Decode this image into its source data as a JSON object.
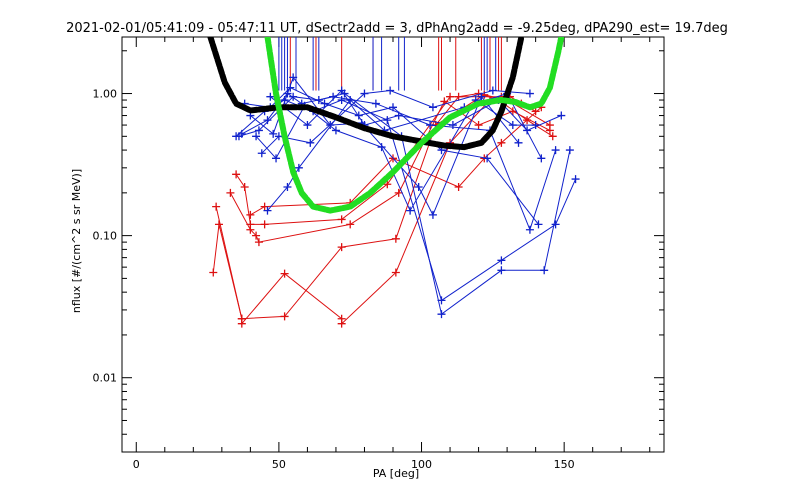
{
  "chart_data": {
    "type": "scatter",
    "title": "2021-02-01/05:41:09 - 05:47:11 UT, dSectr2add = 3, dPhAng2add = -9.25deg, dPA290_est=  19.7deg",
    "xlabel": "PA [deg]",
    "ylabel": "nflux [#/(cm^2 s sr MeV)]",
    "xlim": [
      -5,
      185
    ],
    "ylim": [
      0.003,
      2.5
    ],
    "yscale": "log",
    "grid": false,
    "x_ticks": [
      {
        "value": 0,
        "label": "0"
      },
      {
        "value": 50,
        "label": "50"
      },
      {
        "value": 100,
        "label": "100"
      },
      {
        "value": 150,
        "label": "150"
      }
    ],
    "y_ticks": [
      {
        "value": 0.01,
        "label": "0.01"
      },
      {
        "value": 0.1,
        "label": "0.10"
      },
      {
        "value": 1.0,
        "label": "1.00"
      }
    ],
    "x_minor_step": 10,
    "colors": {
      "red": "#dd1111",
      "blue": "#1122cc",
      "black": "#000000",
      "green": "#22dd22"
    },
    "vertical_markers": {
      "y_top": 2.5,
      "y_bottom": 1.05,
      "red": [
        54,
        63,
        72,
        83,
        106,
        107,
        112,
        121,
        124,
        127,
        128
      ],
      "blue": [
        50,
        51,
        52,
        53,
        56,
        62,
        64,
        83,
        86,
        92,
        94,
        122,
        123,
        126
      ]
    },
    "series": [
      {
        "color": "red",
        "points": [
          {
            "x": 27,
            "y": 0.055
          },
          {
            "x": 29,
            "y": 0.12
          },
          {
            "x": 37,
            "y": 0.026
          },
          {
            "x": 37,
            "y": 0.024
          },
          {
            "x": 52,
            "y": 0.054
          },
          {
            "x": 72,
            "y": 0.026
          },
          {
            "x": 72,
            "y": 0.024
          },
          {
            "x": 91,
            "y": 0.055
          },
          {
            "x": 110,
            "y": 0.45
          },
          {
            "x": 124,
            "y": 0.9
          },
          {
            "x": 131,
            "y": 0.95
          },
          {
            "x": 140,
            "y": 0.75
          }
        ]
      },
      {
        "color": "red",
        "points": [
          {
            "x": 28,
            "y": 0.16
          },
          {
            "x": 37,
            "y": 0.026
          },
          {
            "x": 52,
            "y": 0.027
          },
          {
            "x": 72,
            "y": 0.083
          },
          {
            "x": 91,
            "y": 0.095
          },
          {
            "x": 105,
            "y": 0.6
          },
          {
            "x": 122,
            "y": 0.98
          },
          {
            "x": 135,
            "y": 0.85
          }
        ]
      },
      {
        "color": "red",
        "points": [
          {
            "x": 33,
            "y": 0.2
          },
          {
            "x": 40,
            "y": 0.11
          },
          {
            "x": 42,
            "y": 0.1
          },
          {
            "x": 43,
            "y": 0.09
          },
          {
            "x": 75,
            "y": 0.12
          },
          {
            "x": 92,
            "y": 0.2
          },
          {
            "x": 108,
            "y": 0.88
          },
          {
            "x": 120,
            "y": 0.6
          },
          {
            "x": 132,
            "y": 0.75
          },
          {
            "x": 145,
            "y": 0.55
          }
        ]
      },
      {
        "color": "red",
        "points": [
          {
            "x": 35,
            "y": 0.27
          },
          {
            "x": 38,
            "y": 0.22
          },
          {
            "x": 40,
            "y": 0.12
          },
          {
            "x": 45,
            "y": 0.12
          },
          {
            "x": 72,
            "y": 0.13
          },
          {
            "x": 88,
            "y": 0.23
          },
          {
            "x": 110,
            "y": 0.95
          },
          {
            "x": 128,
            "y": 0.95
          },
          {
            "x": 145,
            "y": 0.6
          }
        ]
      },
      {
        "color": "red",
        "points": [
          {
            "x": 40,
            "y": 0.14
          },
          {
            "x": 45,
            "y": 0.16
          },
          {
            "x": 75,
            "y": 0.17
          },
          {
            "x": 90,
            "y": 0.35
          },
          {
            "x": 113,
            "y": 0.22
          },
          {
            "x": 122,
            "y": 0.35
          },
          {
            "x": 128,
            "y": 0.45
          },
          {
            "x": 142,
            "y": 0.8
          }
        ]
      },
      {
        "color": "red",
        "points": [
          {
            "x": 105,
            "y": 0.6
          },
          {
            "x": 113,
            "y": 0.95
          },
          {
            "x": 120,
            "y": 1.0
          },
          {
            "x": 127,
            "y": 0.9
          },
          {
            "x": 137,
            "y": 0.65
          },
          {
            "x": 146,
            "y": 0.5
          }
        ]
      },
      {
        "color": "blue",
        "points": [
          {
            "x": 35,
            "y": 0.5
          },
          {
            "x": 45,
            "y": 0.75
          },
          {
            "x": 52,
            "y": 0.9
          },
          {
            "x": 62,
            "y": 0.75
          },
          {
            "x": 72,
            "y": 0.9
          },
          {
            "x": 88,
            "y": 0.65
          },
          {
            "x": 107,
            "y": 0.035
          },
          {
            "x": 128,
            "y": 0.067
          },
          {
            "x": 147,
            "y": 0.12
          },
          {
            "x": 154,
            "y": 0.25
          }
        ]
      },
      {
        "color": "blue",
        "points": [
          {
            "x": 36,
            "y": 0.5
          },
          {
            "x": 43,
            "y": 0.55
          },
          {
            "x": 55,
            "y": 0.95
          },
          {
            "x": 64,
            "y": 0.9
          },
          {
            "x": 73,
            "y": 1.0
          },
          {
            "x": 93,
            "y": 0.5
          },
          {
            "x": 107,
            "y": 0.028
          },
          {
            "x": 128,
            "y": 0.057
          },
          {
            "x": 143,
            "y": 0.057
          },
          {
            "x": 152,
            "y": 0.4
          }
        ]
      },
      {
        "color": "blue",
        "points": [
          {
            "x": 37,
            "y": 0.52
          },
          {
            "x": 46,
            "y": 0.65
          },
          {
            "x": 53,
            "y": 1.0
          },
          {
            "x": 58,
            "y": 0.85
          },
          {
            "x": 69,
            "y": 0.95
          },
          {
            "x": 84,
            "y": 0.85
          },
          {
            "x": 103,
            "y": 0.6
          },
          {
            "x": 124,
            "y": 0.55
          },
          {
            "x": 138,
            "y": 0.11
          },
          {
            "x": 147,
            "y": 0.4
          }
        ]
      },
      {
        "color": "blue",
        "points": [
          {
            "x": 38,
            "y": 0.85
          },
          {
            "x": 47,
            "y": 0.8
          },
          {
            "x": 54,
            "y": 1.1
          },
          {
            "x": 66,
            "y": 0.85
          },
          {
            "x": 78,
            "y": 0.7
          },
          {
            "x": 90,
            "y": 0.8
          },
          {
            "x": 107,
            "y": 0.4
          },
          {
            "x": 123,
            "y": 0.35
          },
          {
            "x": 141,
            "y": 0.12
          }
        ]
      },
      {
        "color": "blue",
        "points": [
          {
            "x": 40,
            "y": 0.7
          },
          {
            "x": 48,
            "y": 0.52
          },
          {
            "x": 55,
            "y": 1.3
          },
          {
            "x": 68,
            "y": 0.6
          },
          {
            "x": 79,
            "y": 0.62
          },
          {
            "x": 99,
            "y": 0.22
          },
          {
            "x": 104,
            "y": 0.14
          },
          {
            "x": 121,
            "y": 0.95
          },
          {
            "x": 134,
            "y": 0.45
          }
        ]
      },
      {
        "color": "blue",
        "points": [
          {
            "x": 42,
            "y": 0.5
          },
          {
            "x": 49,
            "y": 0.35
          },
          {
            "x": 59,
            "y": 0.82
          },
          {
            "x": 70,
            "y": 0.55
          },
          {
            "x": 86,
            "y": 0.42
          },
          {
            "x": 96,
            "y": 0.15
          },
          {
            "x": 119,
            "y": 0.9
          },
          {
            "x": 132,
            "y": 0.6
          },
          {
            "x": 140,
            "y": 0.6
          }
        ]
      },
      {
        "color": "blue",
        "points": [
          {
            "x": 44,
            "y": 0.38
          },
          {
            "x": 50,
            "y": 0.5
          },
          {
            "x": 61,
            "y": 0.45
          },
          {
            "x": 80,
            "y": 1.0
          },
          {
            "x": 89,
            "y": 1.05
          },
          {
            "x": 104,
            "y": 0.8
          },
          {
            "x": 125,
            "y": 1.05
          },
          {
            "x": 138,
            "y": 1.0
          }
        ]
      },
      {
        "color": "blue",
        "points": [
          {
            "x": 46,
            "y": 0.15
          },
          {
            "x": 53,
            "y": 0.22
          },
          {
            "x": 57,
            "y": 0.3
          },
          {
            "x": 75,
            "y": 0.9
          },
          {
            "x": 87,
            "y": 0.55
          },
          {
            "x": 115,
            "y": 0.8
          },
          {
            "x": 130,
            "y": 1.0
          },
          {
            "x": 142,
            "y": 0.35
          }
        ]
      },
      {
        "color": "blue",
        "points": [
          {
            "x": 47,
            "y": 0.95
          },
          {
            "x": 60,
            "y": 0.6
          },
          {
            "x": 72,
            "y": 1.05
          },
          {
            "x": 80,
            "y": 0.6
          },
          {
            "x": 92,
            "y": 0.7
          },
          {
            "x": 111,
            "y": 0.6
          },
          {
            "x": 127,
            "y": 0.9
          },
          {
            "x": 137,
            "y": 0.55
          },
          {
            "x": 149,
            "y": 0.7
          }
        ]
      }
    ],
    "curves": [
      {
        "color": "black",
        "style": "thick-dashed",
        "points": [
          {
            "x": 26,
            "y": 2.5
          },
          {
            "x": 31,
            "y": 1.2
          },
          {
            "x": 35,
            "y": 0.85
          },
          {
            "x": 40,
            "y": 0.76
          },
          {
            "x": 50,
            "y": 0.8
          },
          {
            "x": 60,
            "y": 0.8
          },
          {
            "x": 70,
            "y": 0.68
          },
          {
            "x": 80,
            "y": 0.57
          },
          {
            "x": 90,
            "y": 0.5
          },
          {
            "x": 100,
            "y": 0.46
          },
          {
            "x": 108,
            "y": 0.43
          },
          {
            "x": 115,
            "y": 0.42
          },
          {
            "x": 121,
            "y": 0.45
          },
          {
            "x": 125,
            "y": 0.55
          },
          {
            "x": 128,
            "y": 0.75
          },
          {
            "x": 132,
            "y": 1.3
          },
          {
            "x": 135,
            "y": 2.5
          }
        ]
      },
      {
        "color": "green",
        "style": "thick-dashed",
        "points": [
          {
            "x": 46,
            "y": 2.5
          },
          {
            "x": 49,
            "y": 1.0
          },
          {
            "x": 52,
            "y": 0.5
          },
          {
            "x": 55,
            "y": 0.28
          },
          {
            "x": 58,
            "y": 0.2
          },
          {
            "x": 62,
            "y": 0.16
          },
          {
            "x": 68,
            "y": 0.15
          },
          {
            "x": 75,
            "y": 0.16
          },
          {
            "x": 82,
            "y": 0.2
          },
          {
            "x": 90,
            "y": 0.28
          },
          {
            "x": 100,
            "y": 0.45
          },
          {
            "x": 110,
            "y": 0.68
          },
          {
            "x": 120,
            "y": 0.85
          },
          {
            "x": 128,
            "y": 0.9
          },
          {
            "x": 133,
            "y": 0.87
          },
          {
            "x": 138,
            "y": 0.8
          },
          {
            "x": 142,
            "y": 0.85
          },
          {
            "x": 145,
            "y": 1.1
          },
          {
            "x": 148,
            "y": 2.0
          },
          {
            "x": 149,
            "y": 2.5
          }
        ]
      }
    ]
  }
}
